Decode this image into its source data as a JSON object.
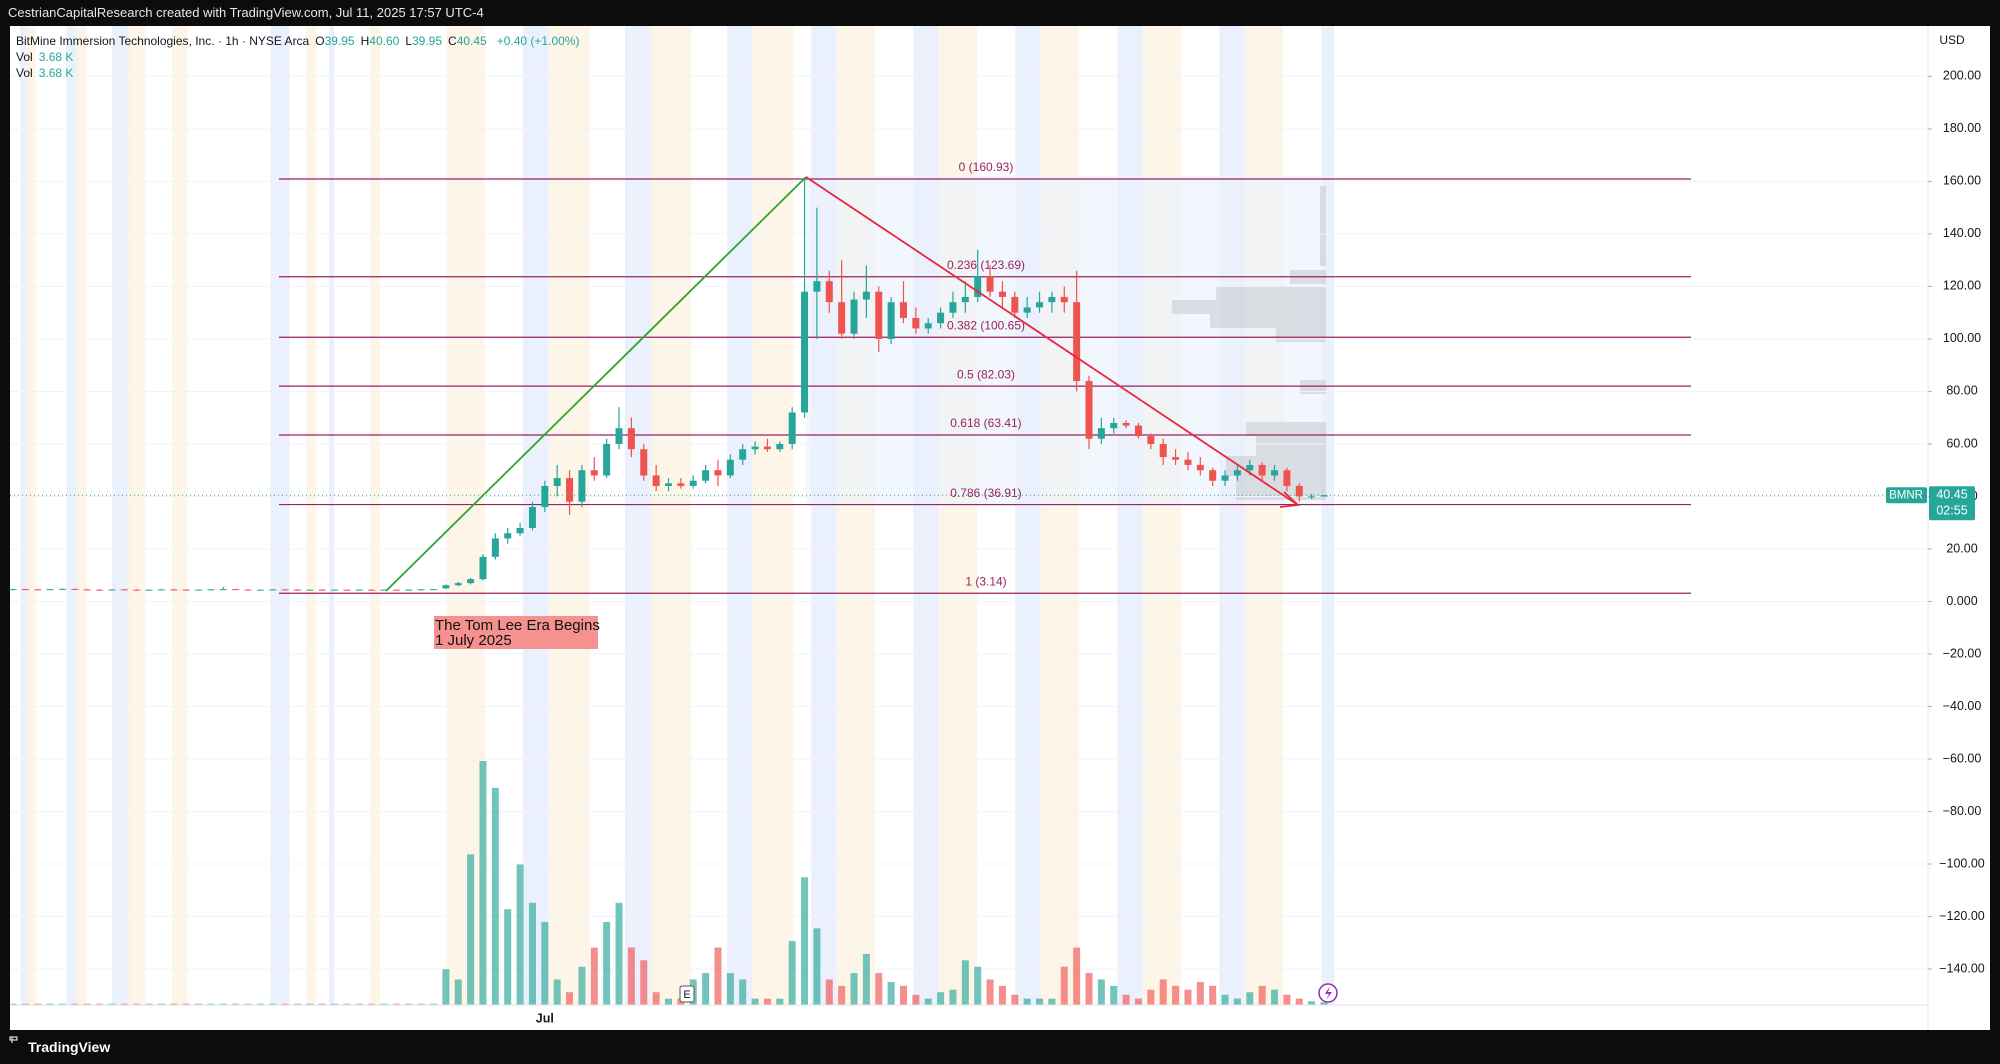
{
  "header": {
    "attribution": "CestrianCapitalResearch created with TradingView.com, Jul 11, 2025 17:57 UTC-4"
  },
  "legend": {
    "symbol": "BitMine Immersion Technologies, Inc. · 1h · NYSE Arca",
    "ohlc": [
      {
        "key": "O",
        "value": "39.95"
      },
      {
        "key": "H",
        "value": "40.60"
      },
      {
        "key": "L",
        "value": "39.95"
      },
      {
        "key": "C",
        "value": "40.45"
      }
    ],
    "change": "+0.40 (+1.00%)",
    "volumes": [
      {
        "key": "Vol",
        "value": "3.68 K"
      },
      {
        "key": "Vol",
        "value": "3.68 K"
      }
    ]
  },
  "footer": "TradingView",
  "chart_data": {
    "type": "candlestick",
    "currency": "USD",
    "up_color": "#26a69a",
    "down_color": "#ef5350",
    "fib_color": "#9c2160",
    "ylim": [
      -153.7,
      219.2
    ],
    "yticks": [
      {
        "value": 200,
        "label": "200.00"
      },
      {
        "value": 180,
        "label": "180.00"
      },
      {
        "value": 160,
        "label": "160.00"
      },
      {
        "value": 140,
        "label": "140.00"
      },
      {
        "value": 120,
        "label": "120.00"
      },
      {
        "value": 100,
        "label": "100.00"
      },
      {
        "value": 80,
        "label": "80.00"
      },
      {
        "value": 60,
        "label": "60.00"
      },
      {
        "value": 40,
        "label": "40.00"
      },
      {
        "value": 20,
        "label": "20.00"
      },
      {
        "value": 0,
        "label": "0.000"
      },
      {
        "value": -20,
        "label": "−20.00"
      },
      {
        "value": -40,
        "label": "−40.00"
      },
      {
        "value": -60,
        "label": "−60.00"
      },
      {
        "value": -80,
        "label": "−80.00"
      },
      {
        "value": -100,
        "label": "−100.00"
      },
      {
        "value": -120,
        "label": "−120.00"
      },
      {
        "value": -140,
        "label": "−140.00"
      }
    ],
    "grid": true,
    "categories": [
      null,
      null,
      null,
      null,
      null,
      null,
      null,
      null,
      null,
      null,
      null,
      null,
      null,
      null,
      null,
      null,
      null,
      null,
      null,
      null,
      null,
      null,
      null,
      null,
      null,
      null,
      null,
      null,
      null,
      null,
      null,
      null,
      null,
      null,
      null,
      null,
      null,
      null,
      null,
      null,
      null,
      null,
      null,
      "Jul",
      null,
      null,
      null,
      null,
      null,
      null,
      null,
      null,
      null,
      null,
      null,
      null,
      null,
      null,
      null,
      null,
      null,
      null,
      null,
      null,
      null,
      null,
      null,
      null,
      null,
      null,
      null,
      null,
      null,
      null,
      null,
      null,
      null,
      null,
      null,
      null,
      null,
      null,
      null,
      null,
      null,
      null,
      null,
      null,
      null,
      null,
      null,
      null,
      null,
      null,
      null,
      null,
      null,
      null,
      null,
      null,
      null,
      null,
      null,
      null,
      null,
      null,
      null
    ],
    "ohlc": [
      [
        4.6,
        4.9,
        4.4,
        4.7
      ],
      [
        4.7,
        4.9,
        4.5,
        4.6
      ],
      [
        4.6,
        4.8,
        4.4,
        4.5
      ],
      [
        4.5,
        4.8,
        4.4,
        4.7
      ],
      [
        4.7,
        5.0,
        4.5,
        4.8
      ],
      [
        4.8,
        4.9,
        4.5,
        4.6
      ],
      [
        4.6,
        4.8,
        4.4,
        4.5
      ],
      [
        4.5,
        4.7,
        4.3,
        4.4
      ],
      [
        4.4,
        4.7,
        4.3,
        4.6
      ],
      [
        4.6,
        4.8,
        4.4,
        4.5
      ],
      [
        4.5,
        4.7,
        4.3,
        4.4
      ],
      [
        4.4,
        4.6,
        4.3,
        4.5
      ],
      [
        4.5,
        4.7,
        4.4,
        4.6
      ],
      [
        4.6,
        4.8,
        4.4,
        4.5
      ],
      [
        4.5,
        4.7,
        4.3,
        4.4
      ],
      [
        4.4,
        4.6,
        4.3,
        4.5
      ],
      [
        4.5,
        4.7,
        4.4,
        4.6
      ],
      [
        4.6,
        5.6,
        4.5,
        4.7
      ],
      [
        4.7,
        4.8,
        4.4,
        4.5
      ],
      [
        4.5,
        4.7,
        4.3,
        4.4
      ],
      [
        4.4,
        4.6,
        4.3,
        4.5
      ],
      [
        4.5,
        4.7,
        4.4,
        4.6
      ],
      [
        4.6,
        4.8,
        4.4,
        4.5
      ],
      [
        4.5,
        4.7,
        4.3,
        4.4
      ],
      [
        4.4,
        4.6,
        4.3,
        4.5
      ],
      [
        4.5,
        4.7,
        4.4,
        4.4
      ],
      [
        4.4,
        4.6,
        4.3,
        4.5
      ],
      [
        4.5,
        4.6,
        4.3,
        4.4
      ],
      [
        4.4,
        4.6,
        4.3,
        4.5
      ],
      [
        4.5,
        4.6,
        4.3,
        4.4
      ],
      [
        4.4,
        4.6,
        4.3,
        4.5
      ],
      [
        4.5,
        4.6,
        4.3,
        4.4
      ],
      [
        4.4,
        4.6,
        4.3,
        4.5
      ],
      [
        4.5,
        4.7,
        4.4,
        4.6
      ],
      [
        4.6,
        4.8,
        4.4,
        4.7
      ],
      [
        5,
        6.5,
        4.8,
        6.2
      ],
      [
        6.2,
        7.5,
        5.8,
        7
      ],
      [
        7,
        9,
        6.5,
        8.5
      ],
      [
        8.5,
        18,
        8,
        17
      ],
      [
        17,
        26,
        16,
        24
      ],
      [
        24,
        28,
        22,
        26
      ],
      [
        26,
        30,
        25,
        28
      ],
      [
        28,
        38,
        27,
        36
      ],
      [
        36,
        46,
        34,
        44
      ],
      [
        44,
        52,
        40,
        47
      ],
      [
        47,
        50,
        33,
        38
      ],
      [
        38,
        52,
        36,
        50
      ],
      [
        50,
        55,
        46,
        48
      ],
      [
        48,
        62,
        47,
        60
      ],
      [
        60,
        74,
        58,
        66
      ],
      [
        66,
        70,
        55,
        58
      ],
      [
        58,
        60,
        46,
        48
      ],
      [
        48,
        52,
        42,
        44
      ],
      [
        44,
        47,
        42,
        45
      ],
      [
        45,
        47,
        43,
        44
      ],
      [
        44,
        48,
        43,
        46
      ],
      [
        46,
        52,
        45,
        50
      ],
      [
        50,
        54,
        44,
        48
      ],
      [
        48,
        56,
        47,
        54
      ],
      [
        54,
        60,
        52,
        58
      ],
      [
        58,
        61,
        56,
        59
      ],
      [
        59,
        62,
        57,
        58
      ],
      [
        58,
        61,
        57,
        60
      ],
      [
        60,
        74,
        58,
        72
      ],
      [
        72,
        160.93,
        70,
        118
      ],
      [
        118,
        150,
        100,
        122
      ],
      [
        122,
        126,
        110,
        114
      ],
      [
        114,
        130,
        100,
        102
      ],
      [
        102,
        118,
        100,
        115
      ],
      [
        115,
        128,
        108,
        118
      ],
      [
        118,
        120,
        95,
        100
      ],
      [
        100,
        116,
        98,
        114
      ],
      [
        114,
        122,
        106,
        108
      ],
      [
        108,
        112,
        102,
        104
      ],
      [
        104,
        108,
        102,
        106
      ],
      [
        106,
        112,
        104,
        110
      ],
      [
        110,
        118,
        108,
        114
      ],
      [
        114,
        122,
        110,
        116
      ],
      [
        116,
        134,
        114,
        124
      ],
      [
        124,
        128,
        116,
        118
      ],
      [
        118,
        122,
        112,
        116
      ],
      [
        116,
        118,
        108,
        110
      ],
      [
        110,
        116,
        108,
        112
      ],
      [
        112,
        118,
        110,
        114
      ],
      [
        114,
        118,
        110,
        116
      ],
      [
        116,
        120,
        110,
        114
      ],
      [
        114,
        126,
        80,
        84
      ],
      [
        84,
        86,
        58,
        62
      ],
      [
        62,
        70,
        60,
        66
      ],
      [
        66,
        70,
        64,
        68
      ],
      [
        68,
        69,
        66,
        67
      ],
      [
        67,
        68,
        62,
        63
      ],
      [
        63,
        64,
        58,
        60
      ],
      [
        60,
        62,
        52,
        55
      ],
      [
        55,
        58,
        52,
        54
      ],
      [
        54,
        57,
        50,
        52
      ],
      [
        52,
        55,
        48,
        50
      ],
      [
        50,
        51,
        44,
        46
      ],
      [
        46,
        50,
        44,
        48
      ],
      [
        48,
        52,
        46,
        50
      ],
      [
        50,
        54,
        48,
        52
      ],
      [
        52,
        53,
        46,
        48
      ],
      [
        48,
        52,
        46,
        50
      ],
      [
        50,
        51,
        42,
        44
      ],
      [
        44,
        45,
        38,
        40
      ],
      [
        40,
        41,
        39,
        40.05
      ],
      [
        39.95,
        40.6,
        39.95,
        40.45
      ]
    ],
    "volume": [
      1,
      1,
      1,
      1,
      1,
      1,
      1,
      1,
      1,
      1,
      1,
      1,
      1,
      1,
      1,
      1,
      1,
      1,
      1,
      1,
      1,
      1,
      1,
      1,
      1,
      1,
      1,
      1,
      1,
      1,
      1,
      1,
      1,
      1,
      1,
      28,
      20,
      118,
      191,
      170,
      75,
      110,
      80,
      65,
      20,
      10,
      30,
      45,
      65,
      80,
      45,
      35,
      10,
      5,
      5,
      20,
      25,
      45,
      25,
      20,
      5,
      5,
      5,
      50,
      100,
      60,
      20,
      15,
      25,
      40,
      25,
      18,
      15,
      8,
      5,
      10,
      12,
      35,
      30,
      20,
      15,
      8,
      5,
      5,
      5,
      30,
      45,
      25,
      20,
      15,
      8,
      5,
      12,
      20,
      15,
      12,
      18,
      15,
      8,
      5,
      10,
      15,
      12,
      8,
      5,
      3,
      2
    ],
    "fib_levels": [
      {
        "value": 160.93,
        "label": "0 (160.93)"
      },
      {
        "value": 123.69,
        "label": "0.236 (123.69)"
      },
      {
        "value": 100.65,
        "label": "0.382 (100.65)"
      },
      {
        "value": 82.03,
        "label": "0.5 (82.03)"
      },
      {
        "value": 63.41,
        "label": "0.618 (63.41)"
      },
      {
        "value": 36.91,
        "label": "0.786 (36.91)"
      },
      {
        "value": 3.14,
        "label": "1 (3.14)"
      }
    ],
    "last_price": 40.45,
    "price_label": {
      "ticker": "BMNR",
      "countdown": "02:55"
    },
    "annotation": [
      "The Tom Lee Era Begins",
      "1 July 2025"
    ],
    "earnings_marker": "E"
  }
}
